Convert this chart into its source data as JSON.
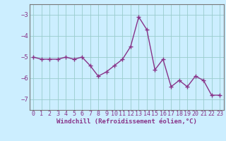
{
  "x": [
    0,
    1,
    2,
    3,
    4,
    5,
    6,
    7,
    8,
    9,
    10,
    11,
    12,
    13,
    14,
    15,
    16,
    17,
    18,
    19,
    20,
    21,
    22,
    23
  ],
  "y": [
    -5.0,
    -5.1,
    -5.1,
    -5.1,
    -5.0,
    -5.1,
    -5.0,
    -5.4,
    -5.9,
    -5.7,
    -5.4,
    -5.1,
    -4.5,
    -3.1,
    -3.7,
    -5.6,
    -5.1,
    -6.4,
    -6.1,
    -6.4,
    -5.9,
    -6.1,
    -6.8,
    -6.8
  ],
  "line_color": "#883388",
  "marker": "+",
  "markersize": 4,
  "linewidth": 1.0,
  "xlabel": "Windchill (Refroidissement éolien,°C)",
  "xlabel_fontsize": 6.5,
  "ylim": [
    -7.5,
    -2.5
  ],
  "xlim": [
    -0.5,
    23.5
  ],
  "yticks": [
    -7,
    -6,
    -5,
    -4,
    -3
  ],
  "xticks": [
    0,
    1,
    2,
    3,
    4,
    5,
    6,
    7,
    8,
    9,
    10,
    11,
    12,
    13,
    14,
    15,
    16,
    17,
    18,
    19,
    20,
    21,
    22,
    23
  ],
  "grid_color": "#99cccc",
  "background_color": "#cceeff",
  "tick_fontsize": 6.0,
  "ytick_fontsize": 6.5,
  "border_color": "#888888",
  "spine_color": "#777777"
}
